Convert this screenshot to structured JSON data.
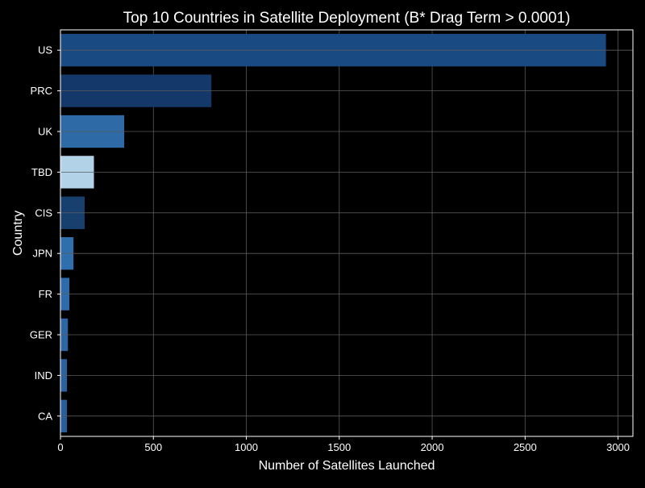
{
  "chart_data": {
    "type": "bar",
    "orientation": "horizontal",
    "title": "Top 10 Countries in Satellite Deployment (B* Drag Term > 0.0001)",
    "xlabel": "Number of Satellites Launched",
    "ylabel": "Country",
    "categories": [
      "US",
      "PRC",
      "UK",
      "TBD",
      "CIS",
      "JPN",
      "FR",
      "GER",
      "IND",
      "CA"
    ],
    "values": [
      2935,
      812,
      343,
      180,
      130,
      70,
      48,
      40,
      35,
      35
    ],
    "xlim": [
      0,
      3080
    ],
    "xticks": [
      0,
      500,
      1000,
      1500,
      2000,
      2500,
      3000
    ],
    "grid": true,
    "legend": "none",
    "bar_colors": [
      "#1a4a82",
      "#15386b",
      "#2d6aa6",
      "#b2d2e8",
      "#17406f",
      "#306fae",
      "#2e6bab",
      "#2c66a4",
      "#2a62a0",
      "#275e9c"
    ],
    "background_color": "#000000",
    "text_color": "#ffffff",
    "grid_color": "#5a5a5a"
  }
}
